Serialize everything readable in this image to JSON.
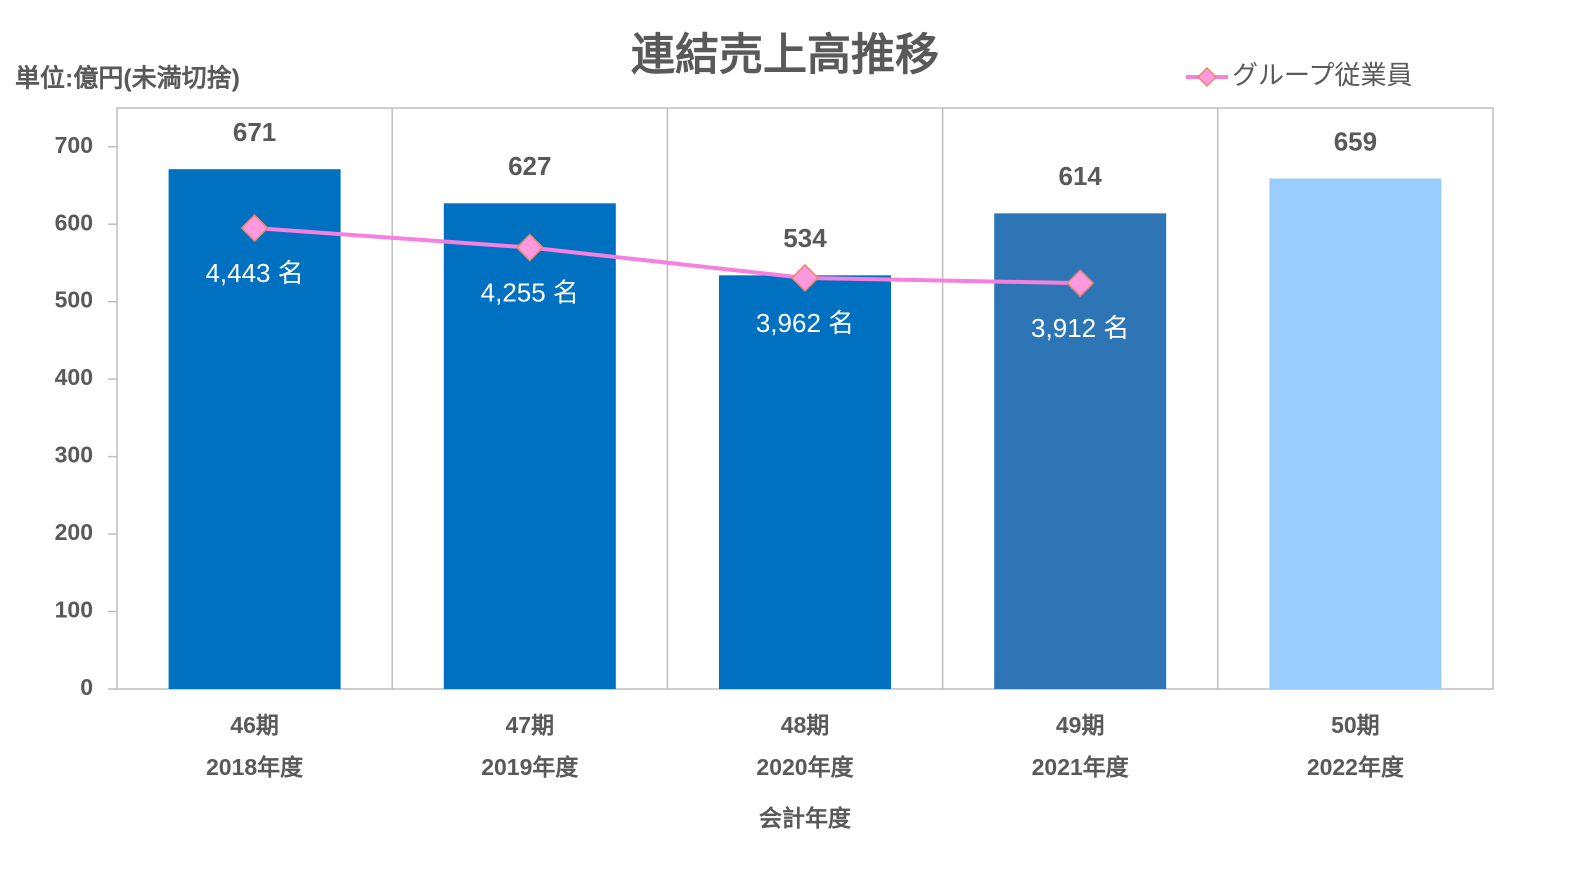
{
  "chart_data": {
    "type": "bar-line",
    "title": "連結売上高推移",
    "unit_label": "単位:億円(未満切捨)",
    "x_label": "会計年度",
    "categories": [
      [
        "46期",
        "2018年度"
      ],
      [
        "47期",
        "2019年度"
      ],
      [
        "48期",
        "2020年度"
      ],
      [
        "49期",
        "2021年度"
      ],
      [
        "50期",
        "2022年度"
      ]
    ],
    "values": [
      671,
      627,
      534,
      614,
      659
    ],
    "colors": [
      "#0070c0",
      "#0070c0",
      "#0070c0",
      "#2e75b6",
      "#99ccff"
    ],
    "ylim": [
      0,
      750
    ],
    "yticks": [
      0,
      100,
      200,
      300,
      400,
      500,
      600,
      700
    ],
    "y2lim": [
      0,
      5600
    ],
    "series": [
      {
        "name": "グループ従業員",
        "color": "#f77fdf",
        "axis": "y2",
        "values": [
          4443,
          4255,
          3962,
          3912,
          null
        ],
        "value_labels": [
          "4,443 名",
          "4,255 名",
          "3,962 名",
          "3,912 名",
          null
        ]
      }
    ],
    "legend": "top-right"
  }
}
